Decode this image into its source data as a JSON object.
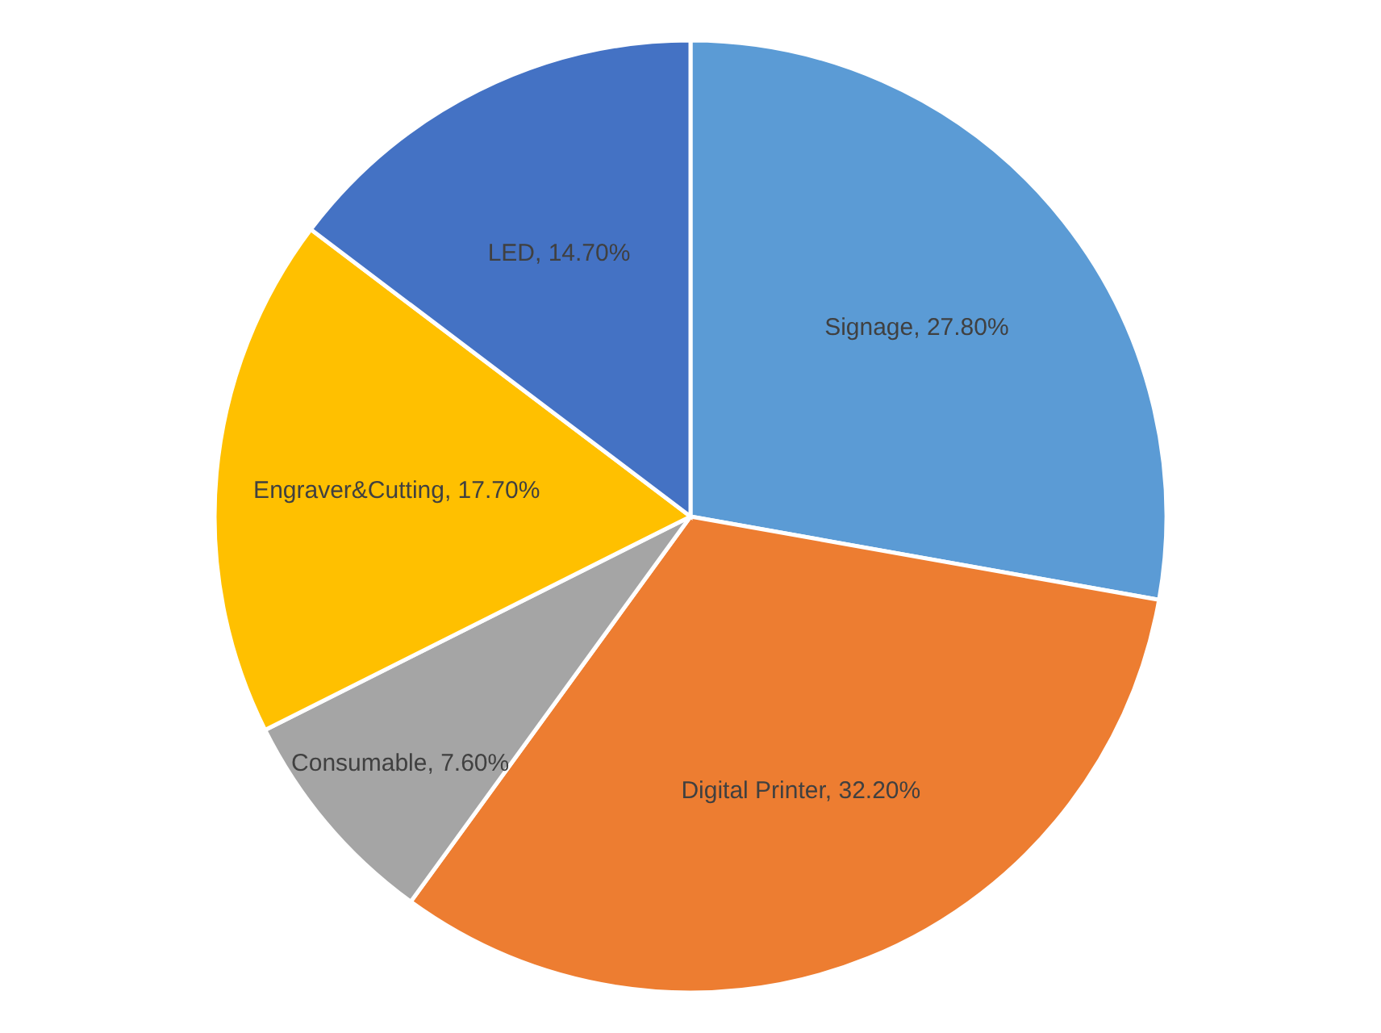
{
  "chart_data": {
    "type": "pie",
    "categories": [
      "Signage",
      "Digital Printer",
      "Consumable",
      "Engraver&Cutting",
      "LED"
    ],
    "values": [
      27.8,
      32.2,
      7.6,
      17.7,
      14.7
    ],
    "value_labels": [
      "27.80%",
      "32.20%",
      "7.60%",
      "17.70%",
      "14.70%"
    ],
    "colors": [
      "#5b9bd5",
      "#ed7d31",
      "#a5a5a5",
      "#ffc000",
      "#4472c4"
    ],
    "legend": false
  }
}
